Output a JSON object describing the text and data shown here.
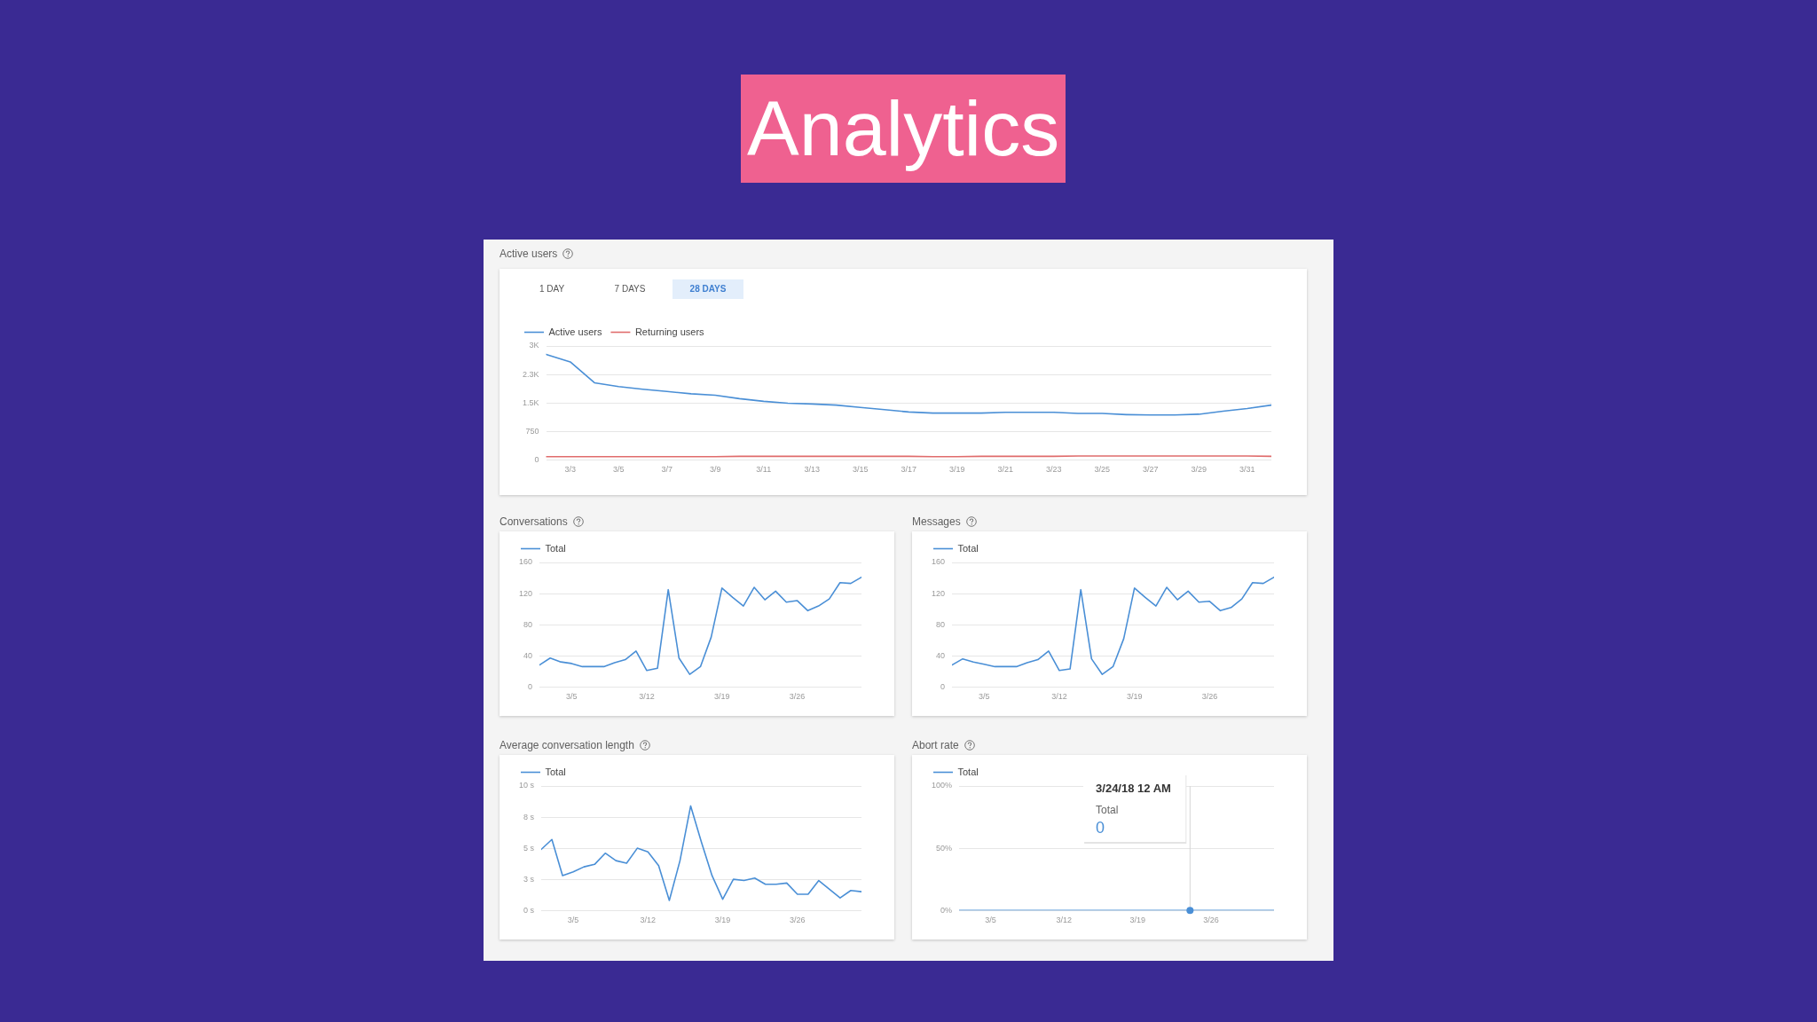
{
  "chart_data": [
    {
      "type": "other",
      "title": "Analytics"
    },
    {
      "type": "line",
      "title": "Active users",
      "annotations": [
        "1 DAY",
        "7 DAYS",
        "28 DAYS"
      ],
      "x": [
        "--03-02",
        "--03-03",
        "--03-04",
        "--03-05",
        "--03-06",
        "--03-07",
        "--03-08",
        "--03-09",
        "--03-10",
        "--03-11",
        "--03-12",
        "--03-13",
        "--03-14",
        "--03-15",
        "--03-16",
        "--03-17",
        "--03-18",
        "--03-19",
        "--03-20",
        "--03-21",
        "--03-22",
        "--03-23",
        "--03-24",
        "--03-25",
        "--03-26",
        "--03-27",
        "--03-28",
        "--03-29",
        "--03-30",
        "--03-31",
        "--04-01"
      ],
      "xlim": [
        "--03-02",
        "--04-01"
      ],
      "xticks": [
        {
          "value": "--03-03",
          "label": "3/3"
        },
        {
          "value": "--03-05",
          "label": "3/5"
        },
        {
          "value": "--03-07",
          "label": "3/7"
        },
        {
          "value": "--03-09",
          "label": "3/9"
        },
        {
          "value": "--03-11",
          "label": "3/11"
        },
        {
          "value": "--03-13",
          "label": "3/13"
        },
        {
          "value": "--03-15",
          "label": "3/15"
        },
        {
          "value": "--03-17",
          "label": "3/17"
        },
        {
          "value": "--03-19",
          "label": "3/19"
        },
        {
          "value": "--03-21",
          "label": "3/21"
        },
        {
          "value": "--03-23",
          "label": "3/23"
        },
        {
          "value": "--03-25",
          "label": "3/25"
        },
        {
          "value": "--03-27",
          "label": "3/27"
        },
        {
          "value": "--03-29",
          "label": "3/29"
        },
        {
          "value": "--03-31",
          "label": "3/31"
        }
      ],
      "ylim": [
        0,
        3000
      ],
      "yticks": [
        0,
        750,
        {
          "value": 1500,
          "label": "1.5K"
        },
        {
          "value": 2250,
          "label": "2.3K"
        },
        {
          "value": 3000,
          "label": "3K"
        }
      ],
      "grid": "y",
      "legend": "top left",
      "series": [
        {
          "name": "Active users",
          "color": "#4a8fd6",
          "values": [
            2780,
            2580,
            2030,
            1930,
            1860,
            1800,
            1740,
            1700,
            1610,
            1540,
            1490,
            1470,
            1440,
            1380,
            1320,
            1260,
            1230,
            1230,
            1230,
            1250,
            1250,
            1250,
            1220,
            1220,
            1190,
            1180,
            1180,
            1200,
            1280,
            1350,
            1440
          ]
        },
        {
          "name": "Returning users",
          "color": "#e06c6c",
          "values": [
            80,
            80,
            80,
            80,
            80,
            80,
            80,
            80,
            90,
            90,
            90,
            90,
            90,
            90,
            90,
            90,
            80,
            80,
            90,
            90,
            90,
            90,
            100,
            100,
            100,
            100,
            100,
            100,
            100,
            100,
            90
          ]
        }
      ]
    },
    {
      "type": "line",
      "title": "Conversations",
      "x": [
        "--03-02",
        "--03-03",
        "--03-04",
        "--03-05",
        "--03-06",
        "--03-07",
        "--03-08",
        "--03-09",
        "--03-10",
        "--03-11",
        "--03-12",
        "--03-13",
        "--03-14",
        "--03-15",
        "--03-16",
        "--03-17",
        "--03-18",
        "--03-19",
        "--03-20",
        "--03-21",
        "--03-22",
        "--03-23",
        "--03-24",
        "--03-25",
        "--03-26",
        "--03-27",
        "--03-28",
        "--03-29",
        "--03-30",
        "--03-31",
        "--04-01"
      ],
      "xlim": [
        "--03-02",
        "--04-01"
      ],
      "xticks": [
        {
          "value": "--03-05",
          "label": "3/5"
        },
        {
          "value": "--03-12",
          "label": "3/12"
        },
        {
          "value": "--03-19",
          "label": "3/19"
        },
        {
          "value": "--03-26",
          "label": "3/26"
        }
      ],
      "ylim": [
        0,
        160
      ],
      "yticks": [
        0,
        40,
        80,
        120,
        160
      ],
      "grid": "y",
      "legend": "top left",
      "series": [
        {
          "name": "Total",
          "color": "#4a8fd6",
          "values": [
            28,
            37,
            32,
            30,
            26,
            26,
            26,
            31,
            35,
            46,
            21,
            24,
            125,
            37,
            16,
            26,
            64,
            127,
            115,
            104,
            128,
            112,
            123,
            109,
            111,
            98,
            104,
            113,
            134,
            133,
            141
          ]
        }
      ]
    },
    {
      "type": "line",
      "title": "Messages",
      "x": [
        "--03-02",
        "--03-03",
        "--03-04",
        "--03-05",
        "--03-06",
        "--03-07",
        "--03-08",
        "--03-09",
        "--03-10",
        "--03-11",
        "--03-12",
        "--03-13",
        "--03-14",
        "--03-15",
        "--03-16",
        "--03-17",
        "--03-18",
        "--03-19",
        "--03-20",
        "--03-21",
        "--03-22",
        "--03-23",
        "--03-24",
        "--03-25",
        "--03-26",
        "--03-27",
        "--03-28",
        "--03-29",
        "--03-30",
        "--03-31",
        "--04-01"
      ],
      "xlim": [
        "--03-02",
        "--04-01"
      ],
      "xticks": [
        {
          "value": "--03-05",
          "label": "3/5"
        },
        {
          "value": "--03-12",
          "label": "3/12"
        },
        {
          "value": "--03-19",
          "label": "3/19"
        },
        {
          "value": "--03-26",
          "label": "3/26"
        }
      ],
      "ylim": [
        0,
        160
      ],
      "yticks": [
        0,
        40,
        80,
        120,
        160
      ],
      "grid": "y",
      "legend": "top left",
      "series": [
        {
          "name": "Total",
          "color": "#4a8fd6",
          "values": [
            28,
            36,
            32,
            29,
            26,
            26,
            26,
            31,
            35,
            46,
            21,
            23,
            125,
            36,
            16,
            26,
            62,
            127,
            115,
            104,
            128,
            112,
            123,
            109,
            110,
            98,
            102,
            113,
            134,
            133,
            141
          ]
        }
      ]
    },
    {
      "type": "line",
      "title": "Average conversation length",
      "x": [
        "--03-02",
        "--03-03",
        "--03-04",
        "--03-05",
        "--03-06",
        "--03-07",
        "--03-08",
        "--03-09",
        "--03-10",
        "--03-11",
        "--03-12",
        "--03-13",
        "--03-14",
        "--03-15",
        "--03-16",
        "--03-17",
        "--03-18",
        "--03-19",
        "--03-20",
        "--03-21",
        "--03-22",
        "--03-23",
        "--03-24",
        "--03-25",
        "--03-26",
        "--03-27",
        "--03-28",
        "--03-29",
        "--03-30",
        "--03-31",
        "--04-01"
      ],
      "xlim": [
        "--03-02",
        "--04-01"
      ],
      "xticks": [
        {
          "value": "--03-05",
          "label": "3/5"
        },
        {
          "value": "--03-12",
          "label": "3/12"
        },
        {
          "value": "--03-19",
          "label": "3/19"
        },
        {
          "value": "--03-26",
          "label": "3/26"
        }
      ],
      "ylim": [
        0,
        10
      ],
      "yticks": [
        {
          "value": 0,
          "label": "0 s"
        },
        {
          "value": 2.5,
          "label": "3 s"
        },
        {
          "value": 5,
          "label": "5 s"
        },
        {
          "value": 7.5,
          "label": "8 s"
        },
        {
          "value": 10,
          "label": "10 s"
        }
      ],
      "grid": "y",
      "legend": "top left",
      "series": [
        {
          "name": "Total",
          "color": "#4a8fd6",
          "values": [
            4.9,
            5.7,
            2.8,
            3.1,
            3.5,
            3.7,
            4.6,
            4.0,
            3.8,
            5.0,
            4.7,
            3.6,
            0.8,
            4.0,
            8.4,
            5.5,
            2.8,
            0.9,
            2.5,
            2.4,
            2.6,
            2.1,
            2.1,
            2.2,
            1.3,
            1.3,
            2.4,
            1.7,
            1.0,
            1.6,
            1.5
          ]
        }
      ]
    },
    {
      "type": "line",
      "title": "Abort rate",
      "x": [
        "--03-02",
        "--03-03",
        "--03-04",
        "--03-05",
        "--03-06",
        "--03-07",
        "--03-08",
        "--03-09",
        "--03-10",
        "--03-11",
        "--03-12",
        "--03-13",
        "--03-14",
        "--03-15",
        "--03-16",
        "--03-17",
        "--03-18",
        "--03-19",
        "--03-20",
        "--03-21",
        "--03-22",
        "--03-23",
        "--03-24",
        "--03-25",
        "--03-26",
        "--03-27",
        "--03-28",
        "--03-29",
        "--03-30",
        "--03-31",
        "--04-01"
      ],
      "xlim": [
        "--03-02",
        "--04-01"
      ],
      "xticks": [
        {
          "value": "--03-05",
          "label": "3/5"
        },
        {
          "value": "--03-12",
          "label": "3/12"
        },
        {
          "value": "--03-19",
          "label": "3/19"
        },
        {
          "value": "--03-26",
          "label": "3/26"
        }
      ],
      "ylim": [
        0,
        100
      ],
      "yticks": [
        {
          "value": 0,
          "label": "0%"
        },
        {
          "value": 50,
          "label": "50%"
        },
        {
          "value": 100,
          "label": "100%"
        }
      ],
      "grid": "y",
      "legend": "top left",
      "ref_lines": [
        {
          "axis": "x",
          "value": "--03-24",
          "color": "#d6d6d6"
        }
      ],
      "annotations": [
        {
          "text": "3/24/18 12 AM\nTotal\n0",
          "x": "--03-24"
        }
      ],
      "series": [
        {
          "name": "Total",
          "color": "#4a8fd6",
          "values": [
            0,
            0,
            0,
            0,
            0,
            0,
            0,
            0,
            0,
            0,
            0,
            0,
            0,
            0,
            0,
            0,
            0,
            0,
            0,
            0,
            0,
            0,
            0,
            0,
            0,
            0,
            0,
            0,
            0,
            0,
            0
          ]
        }
      ]
    }
  ]
}
